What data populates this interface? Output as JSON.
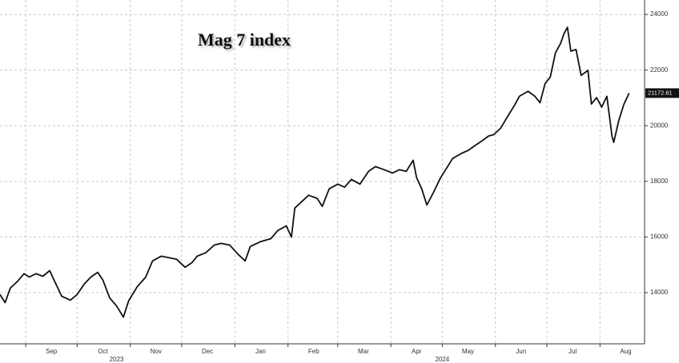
{
  "chart_data": {
    "type": "line",
    "title": "Mag 7 index",
    "x": [
      -15,
      -12,
      -9,
      -5,
      -1,
      2,
      6,
      10,
      14,
      17,
      21,
      26,
      30,
      34,
      38,
      42,
      45,
      49,
      53,
      57,
      60,
      65,
      70,
      74,
      79,
      84,
      88,
      93,
      97,
      100,
      105,
      110,
      114,
      119,
      124,
      128,
      131,
      137,
      143,
      147,
      152,
      155,
      157,
      161,
      165,
      170,
      173,
      177,
      182,
      186,
      190,
      195,
      200,
      204,
      209,
      214,
      218,
      222,
      226,
      228,
      231,
      234,
      238,
      242,
      245,
      249,
      254,
      258,
      262,
      266,
      270,
      273,
      277,
      281,
      285,
      288,
      293,
      297,
      300,
      303,
      306,
      309,
      312,
      314,
      316,
      318,
      321,
      324,
      328,
      330,
      333,
      336,
      339,
      342,
      343,
      346,
      349,
      352
    ],
    "values": [
      13930,
      13640,
      14160,
      14390,
      14680,
      14560,
      14680,
      14590,
      14790,
      14390,
      13870,
      13730,
      13930,
      14300,
      14560,
      14730,
      14450,
      13810,
      13520,
      13120,
      13700,
      14210,
      14560,
      15140,
      15310,
      15250,
      15200,
      14910,
      15080,
      15310,
      15430,
      15710,
      15770,
      15710,
      15370,
      15140,
      15660,
      15830,
      15940,
      16230,
      16400,
      16000,
      17040,
      17270,
      17500,
      17390,
      17100,
      17730,
      17900,
      17790,
      18070,
      17900,
      18360,
      18530,
      18420,
      18300,
      18420,
      18360,
      18760,
      18130,
      17730,
      17150,
      17620,
      18130,
      18420,
      18820,
      19000,
      19110,
      19280,
      19450,
      19630,
      19680,
      19910,
      20320,
      20720,
      21060,
      21240,
      21060,
      20830,
      21520,
      21750,
      22620,
      22960,
      23310,
      23540,
      22680,
      22740,
      21810,
      21990,
      20780,
      21010,
      20670,
      21060,
      19630,
      19400,
      20200,
      20780,
      21172.61
    ],
    "color": "#111111",
    "last_value": 21172.61,
    "xlim": [
      -15,
      361
    ],
    "ylim": [
      12160,
      24520
    ],
    "yticks": [
      14000,
      16000,
      18000,
      20000,
      22000,
      24000
    ],
    "xgrid": [
      0,
      30,
      61,
      91,
      122,
      153,
      182,
      213,
      243,
      274,
      304,
      335
    ],
    "xticks": [
      {
        "value": 15,
        "label": "Sep"
      },
      {
        "value": 45,
        "label": "Oct"
      },
      {
        "value": 76,
        "label": "Nov"
      },
      {
        "value": 106,
        "label": "Dec"
      },
      {
        "value": 137,
        "label": "Jan"
      },
      {
        "value": 168,
        "label": "Feb"
      },
      {
        "value": 197,
        "label": "Mar"
      },
      {
        "value": 228,
        "label": "Apr"
      },
      {
        "value": 258,
        "label": "May"
      },
      {
        "value": 289,
        "label": "Jun"
      },
      {
        "value": 319,
        "label": "Jul"
      },
      {
        "value": 350,
        "label": "Aug"
      }
    ],
    "year_labels": [
      {
        "value": 53,
        "label": "2023"
      },
      {
        "value": 243,
        "label": "2024"
      }
    ],
    "grid": true
  }
}
